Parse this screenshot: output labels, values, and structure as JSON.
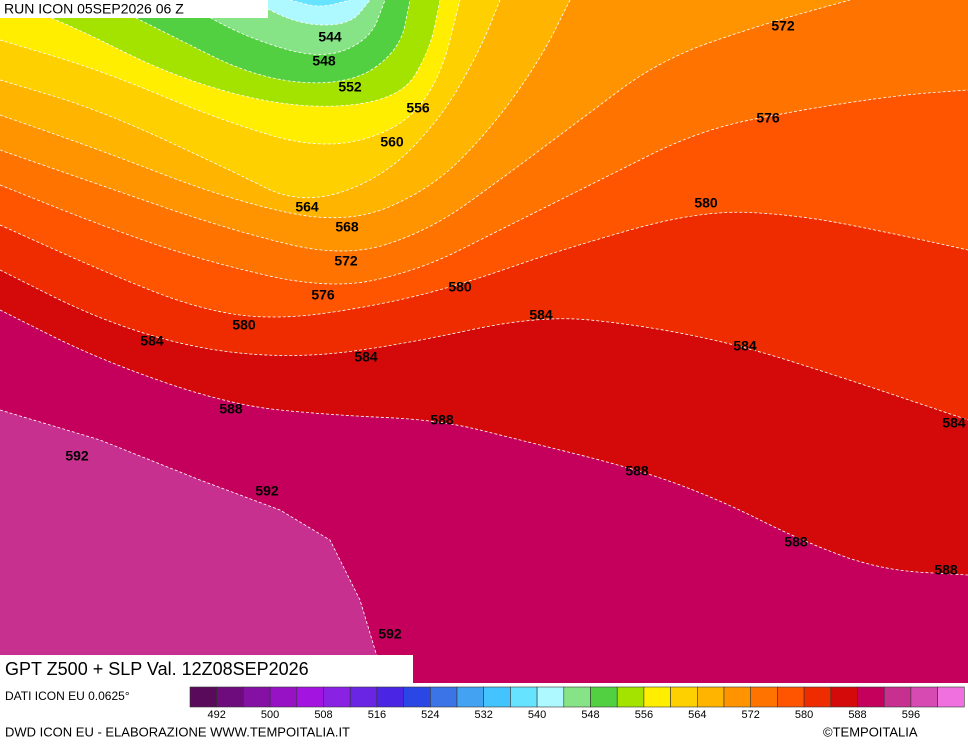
{
  "header": {
    "title": "RUN ICON 05SEP2026 06 Z"
  },
  "map": {
    "caption": "GPT Z500 + SLP Val. 12Z08SEP2026",
    "contour_labels": [
      544,
      548,
      552,
      556,
      560,
      564,
      568,
      572,
      576,
      580,
      584,
      588,
      592,
      592,
      592,
      580,
      584,
      584,
      588,
      588,
      588,
      588,
      584,
      584,
      580,
      576,
      572
    ]
  },
  "colorbar": {
    "note": "DATI ICON EU 0.0625°",
    "colors": [
      "#5a0a5a",
      "#6e0c7e",
      "#8410a4",
      "#9612c4",
      "#a414e0",
      "#8a22e4",
      "#6a24e4",
      "#4a26e4",
      "#2a46e4",
      "#3a74e6",
      "#44a2f2",
      "#44c4ff",
      "#66e4ff",
      "#aef8ff",
      "#86e486",
      "#52d042",
      "#a4e200",
      "#ffee00",
      "#ffd000",
      "#ffb400",
      "#ff9400",
      "#ff7400",
      "#ff5400",
      "#ee2c00",
      "#d40a0a",
      "#c4005c",
      "#c8308f",
      "#d64ab2",
      "#f070e0"
    ],
    "labels": [
      492,
      500,
      508,
      516,
      524,
      532,
      540,
      548,
      556,
      564,
      572,
      580,
      588,
      596
    ]
  },
  "footer": {
    "credit": "DWD ICON EU - ELABORAZIONE WWW.TEMPOITALIA.IT",
    "copyright": "©TEMPOITALIA"
  }
}
